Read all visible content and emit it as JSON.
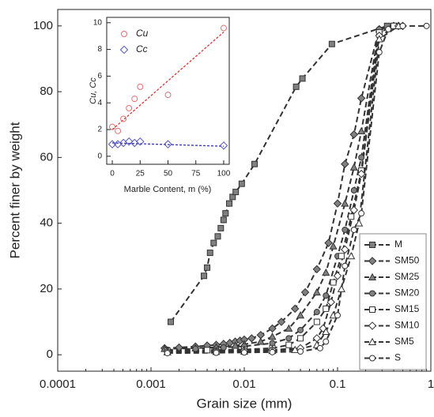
{
  "chart_data": [
    {
      "type": "line",
      "xscale": "log",
      "xlabel": "Grain size (mm)",
      "ylabel": "Percent finer by weight",
      "xlim": [
        0.0001,
        1
      ],
      "xticks": [
        0.0001,
        0.001,
        0.01,
        0.1,
        1
      ],
      "ylim": [
        -5,
        105
      ],
      "yticks": [
        0,
        20,
        40,
        60,
        80,
        100
      ],
      "legend": "lower right",
      "series": [
        {
          "name": "M",
          "marker": "square",
          "color": "#808080",
          "x": [
            0.00163,
            0.0037,
            0.004,
            0.0043,
            0.0047,
            0.0052,
            0.0056,
            0.006,
            0.0063,
            0.0069,
            0.0075,
            0.0081,
            0.0094,
            0.0129,
            0.036,
            0.042,
            0.087,
            0.34,
            0.4
          ],
          "values": [
            10,
            24,
            26.5,
            31,
            34,
            36,
            38.5,
            41,
            43,
            46,
            48,
            49.5,
            52,
            58,
            81.5,
            84,
            94.5,
            100,
            100
          ]
        },
        {
          "name": "SM50",
          "marker": "diamond",
          "color": "#808080",
          "x": [
            0.0014,
            0.002,
            0.003,
            0.004,
            0.005,
            0.006,
            0.007,
            0.008,
            0.009,
            0.01,
            0.012,
            0.015,
            0.02,
            0.025,
            0.035,
            0.045,
            0.06,
            0.08,
            0.1,
            0.12,
            0.15,
            0.18,
            0.28,
            0.4,
            0.5
          ],
          "values": [
            2,
            2.2,
            2.5,
            2.8,
            3,
            3.3,
            3.6,
            4,
            4.3,
            4.6,
            5,
            6,
            8,
            10,
            14,
            19,
            26,
            34,
            46,
            58,
            67,
            78,
            99,
            100,
            100
          ]
        },
        {
          "name": "SM25",
          "marker": "triangle",
          "color": "#808080",
          "x": [
            0.0014,
            0.003,
            0.005,
            0.008,
            0.01,
            0.015,
            0.02,
            0.03,
            0.04,
            0.06,
            0.075,
            0.09,
            0.12,
            0.15,
            0.18,
            0.28,
            0.4
          ],
          "values": [
            1.8,
            2,
            2.3,
            2.8,
            3.2,
            4,
            5.5,
            8,
            12,
            19,
            25,
            33,
            46,
            57,
            68,
            99,
            100
          ]
        },
        {
          "name": "SM20",
          "marker": "circle",
          "color": "#808080",
          "x": [
            0.0015,
            0.003,
            0.006,
            0.01,
            0.02,
            0.03,
            0.04,
            0.06,
            0.075,
            0.1,
            0.12,
            0.15,
            0.18,
            0.28,
            0.4
          ],
          "values": [
            1.5,
            1.8,
            2.2,
            2.6,
            3.5,
            5,
            7.5,
            13,
            18,
            30,
            38,
            50,
            60,
            99,
            100
          ]
        },
        {
          "name": "SM15",
          "marker": "square",
          "color": "#ffffff",
          "x": [
            0.0015,
            0.004,
            0.01,
            0.02,
            0.03,
            0.04,
            0.06,
            0.075,
            0.09,
            0.11,
            0.14,
            0.18,
            0.28,
            0.4
          ],
          "values": [
            1.2,
            1.4,
            1.6,
            2,
            3,
            5,
            10,
            14,
            22,
            30,
            42,
            56,
            98,
            100
          ]
        },
        {
          "name": "SM10",
          "marker": "diamond",
          "color": "#ffffff",
          "x": [
            0.0015,
            0.005,
            0.01,
            0.02,
            0.04,
            0.06,
            0.07,
            0.085,
            0.1,
            0.12,
            0.15,
            0.18,
            0.28,
            0.45
          ],
          "values": [
            1,
            1.1,
            1.3,
            1.5,
            2,
            5,
            8,
            16,
            24,
            32,
            44,
            55,
            97,
            100
          ]
        },
        {
          "name": "SM5",
          "marker": "triangle",
          "color": "#ffffff",
          "x": [
            0.0015,
            0.005,
            0.01,
            0.02,
            0.035,
            0.06,
            0.075,
            0.09,
            0.11,
            0.14,
            0.17,
            0.28,
            0.45
          ],
          "values": [
            0.8,
            0.9,
            1,
            1.2,
            1.5,
            3,
            7,
            12,
            20,
            30,
            40,
            96,
            100
          ]
        },
        {
          "name": "S",
          "marker": "circle",
          "color": "#ffffff",
          "x": [
            0.0015,
            0.005,
            0.01,
            0.02,
            0.04,
            0.065,
            0.075,
            0.1,
            0.12,
            0.15,
            0.18,
            0.28,
            0.35,
            0.5,
            0.9
          ],
          "values": [
            0.5,
            0.6,
            0.7,
            0.8,
            1,
            2,
            4,
            12,
            27,
            38,
            43,
            92,
            99,
            100,
            100
          ]
        }
      ]
    },
    {
      "type": "scatter",
      "xlabel": "Marble Content, m (%)",
      "ylabel": "Cu, Cc",
      "xlim": [
        -5,
        105
      ],
      "xticks": [
        0,
        25,
        50,
        75,
        100
      ],
      "ylim": [
        -0.6,
        10.4
      ],
      "yticks": [
        0,
        2,
        4,
        6,
        8,
        10
      ],
      "legend": "upper left",
      "series": [
        {
          "name": "Cu",
          "marker": "circle",
          "color": "#e07070",
          "x": [
            0,
            5,
            10,
            15,
            20,
            25,
            50,
            100
          ],
          "values": [
            2.2,
            1.9,
            2.8,
            3.6,
            4.3,
            5.2,
            4.6,
            9.6
          ]
        },
        {
          "name": "Cc",
          "marker": "diamond",
          "color": "#5555bb",
          "x": [
            0,
            5,
            10,
            15,
            20,
            25,
            50,
            100
          ],
          "values": [
            0.9,
            0.9,
            1.0,
            1.1,
            1.0,
            1.1,
            0.9,
            0.8
          ]
        }
      ],
      "fit_lines": [
        {
          "color": "#dd3333",
          "x": [
            0,
            100
          ],
          "values": [
            2,
            9.3
          ]
        },
        {
          "color": "#3333bb",
          "x": [
            0,
            100
          ],
          "values": [
            1.0,
            0.75
          ]
        }
      ]
    }
  ]
}
